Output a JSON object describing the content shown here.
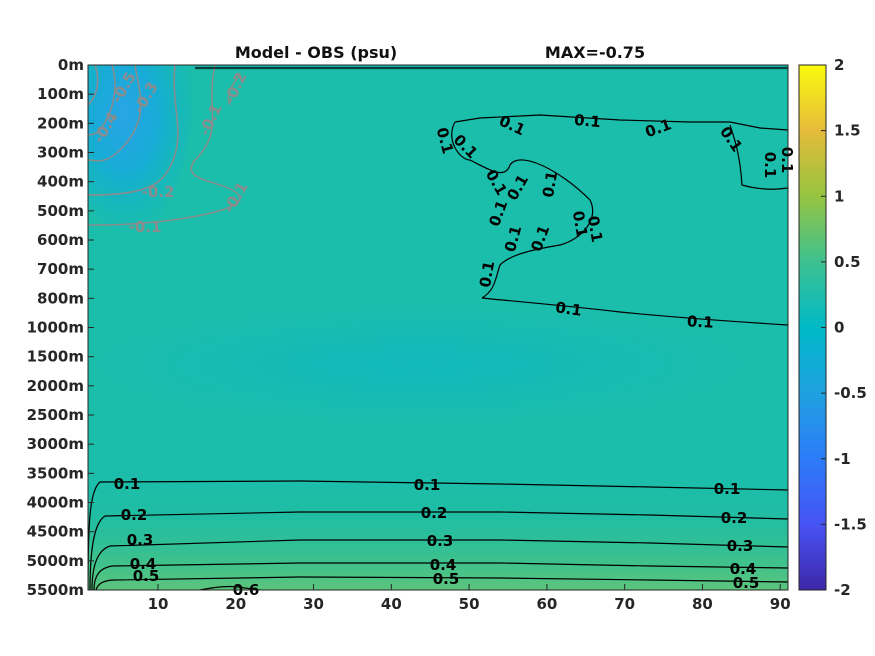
{
  "chart_data": {
    "type": "heatmap",
    "title": "Model - OBS (psu)",
    "subtitle": "MAX=-0.75",
    "xlabel": "",
    "ylabel": "",
    "x_ticks": [
      10,
      20,
      30,
      40,
      50,
      60,
      70,
      80,
      90
    ],
    "xlim": [
      1,
      91
    ],
    "y_ticks": [
      "0m",
      "100m",
      "200m",
      "300m",
      "400m",
      "500m",
      "600m",
      "700m",
      "800m",
      "1000m",
      "1500m",
      "2000m",
      "2500m",
      "3000m",
      "3500m",
      "4000m",
      "4500m",
      "5000m",
      "5500m"
    ],
    "colorbar": {
      "ticks": [
        2,
        1.5,
        1,
        0.5,
        0,
        -0.5,
        -1,
        -1.5,
        -2
      ],
      "tick_labels": [
        "2",
        "1.5",
        "1",
        "0.5",
        "0",
        "-0.5",
        "-1",
        "-1.5",
        "-2"
      ],
      "range": [
        -2,
        2
      ],
      "colormap": "parula"
    },
    "background_value": 0.05,
    "contours_negative": [
      {
        "level": -0.1,
        "label": "-0.1",
        "color": "#8c8c8c"
      },
      {
        "level": -0.2,
        "label": "-0.2",
        "color": "#8c8c8c"
      },
      {
        "level": -0.3,
        "label": "-0.3",
        "color": "#8c8c8c"
      },
      {
        "level": -0.4,
        "label": "-0.4",
        "color": "#8c8c8c"
      },
      {
        "level": -0.5,
        "label": "-0.5",
        "color": "#8c8c8c"
      }
    ],
    "contours_positive": [
      {
        "level": 0.1,
        "label": "0.1",
        "color": "#000000"
      },
      {
        "level": 0.2,
        "label": "0.2",
        "color": "#000000"
      },
      {
        "level": 0.3,
        "label": "0.3",
        "color": "#000000"
      },
      {
        "level": 0.4,
        "label": "0.4",
        "color": "#000000"
      },
      {
        "level": 0.5,
        "label": "0.5",
        "color": "#000000"
      },
      {
        "level": 0.6,
        "label": "0.6",
        "color": "#000000"
      }
    ],
    "grid": false,
    "legend": "none"
  }
}
